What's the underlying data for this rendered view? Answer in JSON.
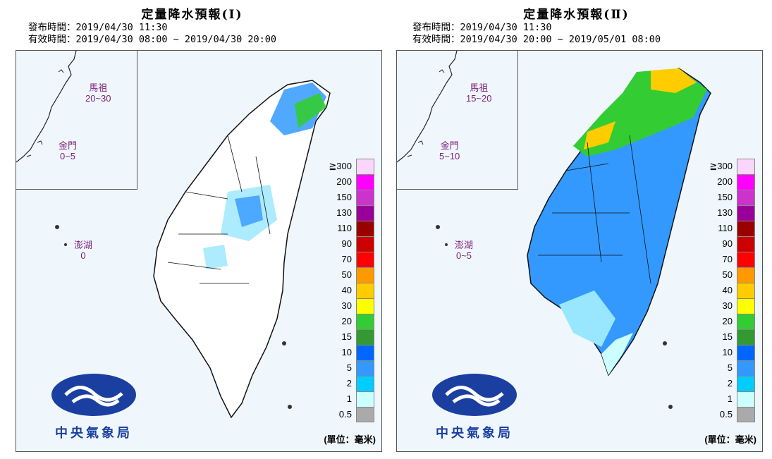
{
  "panels": [
    {
      "title": "定量降水預報(Ⅰ)",
      "issue_line": "發布時間：2019/04/30 11:30",
      "valid_line": "有效時間：2019/04/30 08:00 ~ 2019/04/30 20:00",
      "islands": [
        {
          "name": "馬祖",
          "value": "20~30"
        },
        {
          "name": "金門",
          "value": "0~5"
        },
        {
          "name": "澎湖",
          "value": "0"
        }
      ]
    },
    {
      "title": "定量降水預報(Ⅱ)",
      "issue_line": "發布時間：2019/04/30 11:30",
      "valid_line": "有效時間：2019/04/30 20:00 ~ 2019/05/01 08:00",
      "islands": [
        {
          "name": "馬祖",
          "value": "15~20"
        },
        {
          "name": "金門",
          "value": "5~10"
        },
        {
          "name": "澎湖",
          "value": "0~5"
        }
      ]
    }
  ],
  "legend": {
    "labels": [
      "≧300",
      "200",
      "150",
      "130",
      "110",
      "90",
      "70",
      "50",
      "40",
      "30",
      "20",
      "15",
      "10",
      "5",
      "2",
      "1",
      "0.5"
    ],
    "colors": [
      "#fbd6fb",
      "#ff00ff",
      "#cc33cc",
      "#990099",
      "#990000",
      "#cc0000",
      "#ff0000",
      "#ff9900",
      "#ffcc00",
      "#ffff00",
      "#33cc33",
      "#339933",
      "#0066ff",
      "#3399ff",
      "#00ccff",
      "#ccffff",
      "#aaaaaa"
    ],
    "unit": "(單位：毫米)"
  },
  "logo_text": "中央氣象局",
  "colors": {
    "island_label": "#7a1f7a",
    "logo_blue": "#1a3fa0",
    "sea": "#f0f7fc"
  }
}
